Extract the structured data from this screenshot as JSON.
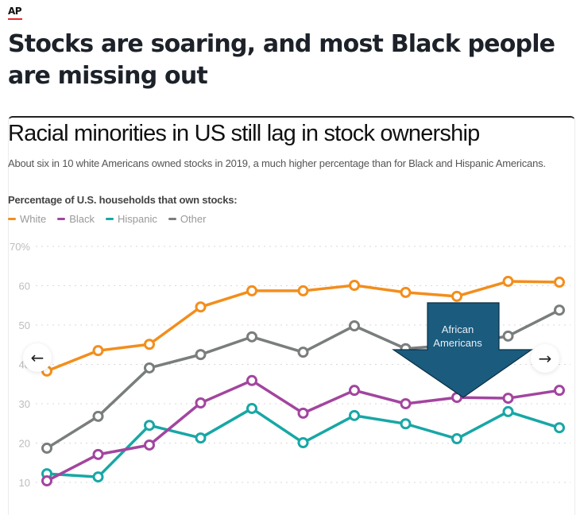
{
  "header": {
    "logo": "AP",
    "headline": "Stocks are soaring, and most Black people are missing out",
    "accent_color": "#e8262d"
  },
  "navigation": {
    "prev_icon": "arrow-left-icon",
    "next_icon": "arrow-right-icon",
    "prev_glyph": "←",
    "next_glyph": "→"
  },
  "annotation": {
    "text": "African Americans",
    "fill_color": "#1a5b7e",
    "points_to_series": "Black"
  },
  "chart_data": {
    "type": "line",
    "title": "Racial minorities in US still lag in stock ownership",
    "subtitle": "About six in 10 white Americans owned stocks in 2019, a much higher percentage than for Black and Hispanic Americans.",
    "ylabel": "Percentage of U.S. households that own stocks:",
    "xlabel": "",
    "ylim": [
      10,
      70
    ],
    "yticks": [
      10,
      20,
      30,
      40,
      50,
      60,
      70
    ],
    "ytick_labels": [
      "10",
      "20",
      "30",
      "40",
      "50",
      "60",
      "70%"
    ],
    "grid": true,
    "legend_position": "top-left",
    "x": [
      1,
      2,
      3,
      4,
      5,
      6,
      7,
      8,
      9,
      10,
      11
    ],
    "series": [
      {
        "name": "White",
        "color": "#f28e1c",
        "values": [
          38.3,
          43.5,
          45.1,
          54.6,
          58.7,
          58.7,
          60.1,
          58.3,
          57.3,
          61.1,
          60.9
        ]
      },
      {
        "name": "Black",
        "color": "#a2459f",
        "values": [
          10.4,
          17.1,
          19.5,
          30.2,
          35.9,
          27.6,
          33.4,
          30.0,
          31.6,
          31.4,
          33.4
        ]
      },
      {
        "name": "Hispanic",
        "color": "#17a7a5",
        "values": [
          12.2,
          11.4,
          24.5,
          21.3,
          28.8,
          20.1,
          27.0,
          24.9,
          21.1,
          28.0,
          23.9
        ]
      },
      {
        "name": "Other",
        "color": "#7a7d7d",
        "values": [
          18.7,
          26.8,
          39.1,
          42.5,
          47.0,
          43.1,
          49.8,
          44.0,
          45.0,
          47.2,
          53.8
        ]
      }
    ]
  }
}
